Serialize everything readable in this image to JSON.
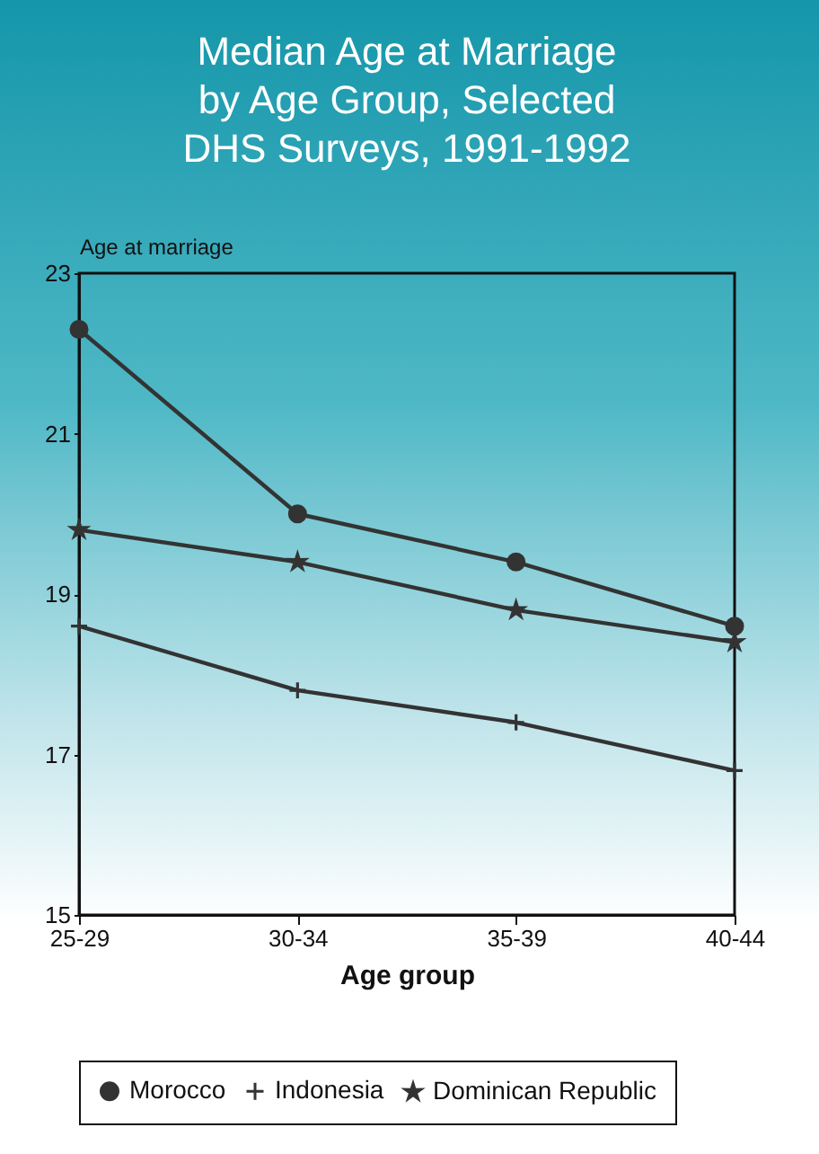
{
  "chart_data": {
    "type": "line",
    "title": "Median Age at Marriage by Age Group, Selected DHS Surveys, 1991-1992",
    "xlabel": "Age group",
    "ylabel": "Age at marriage",
    "categories": [
      "25-29",
      "30-34",
      "35-39",
      "40-44"
    ],
    "series": [
      {
        "name": "Morocco",
        "color": "#333333",
        "marker": "circle",
        "values": [
          22.3,
          20.0,
          19.4,
          18.6
        ]
      },
      {
        "name": "Indonesia",
        "color": "#333333",
        "marker": "cross",
        "values": [
          18.6,
          17.8,
          17.4,
          16.8
        ]
      },
      {
        "name": "Dominican Republic",
        "color": "#333333",
        "marker": "star",
        "values": [
          19.8,
          19.4,
          18.8,
          18.4
        ]
      }
    ],
    "ylim": [
      15,
      23
    ],
    "yticks": [
      15,
      17,
      19,
      21,
      23
    ],
    "grid": false,
    "legend": "bottom",
    "line_style": "solid"
  }
}
